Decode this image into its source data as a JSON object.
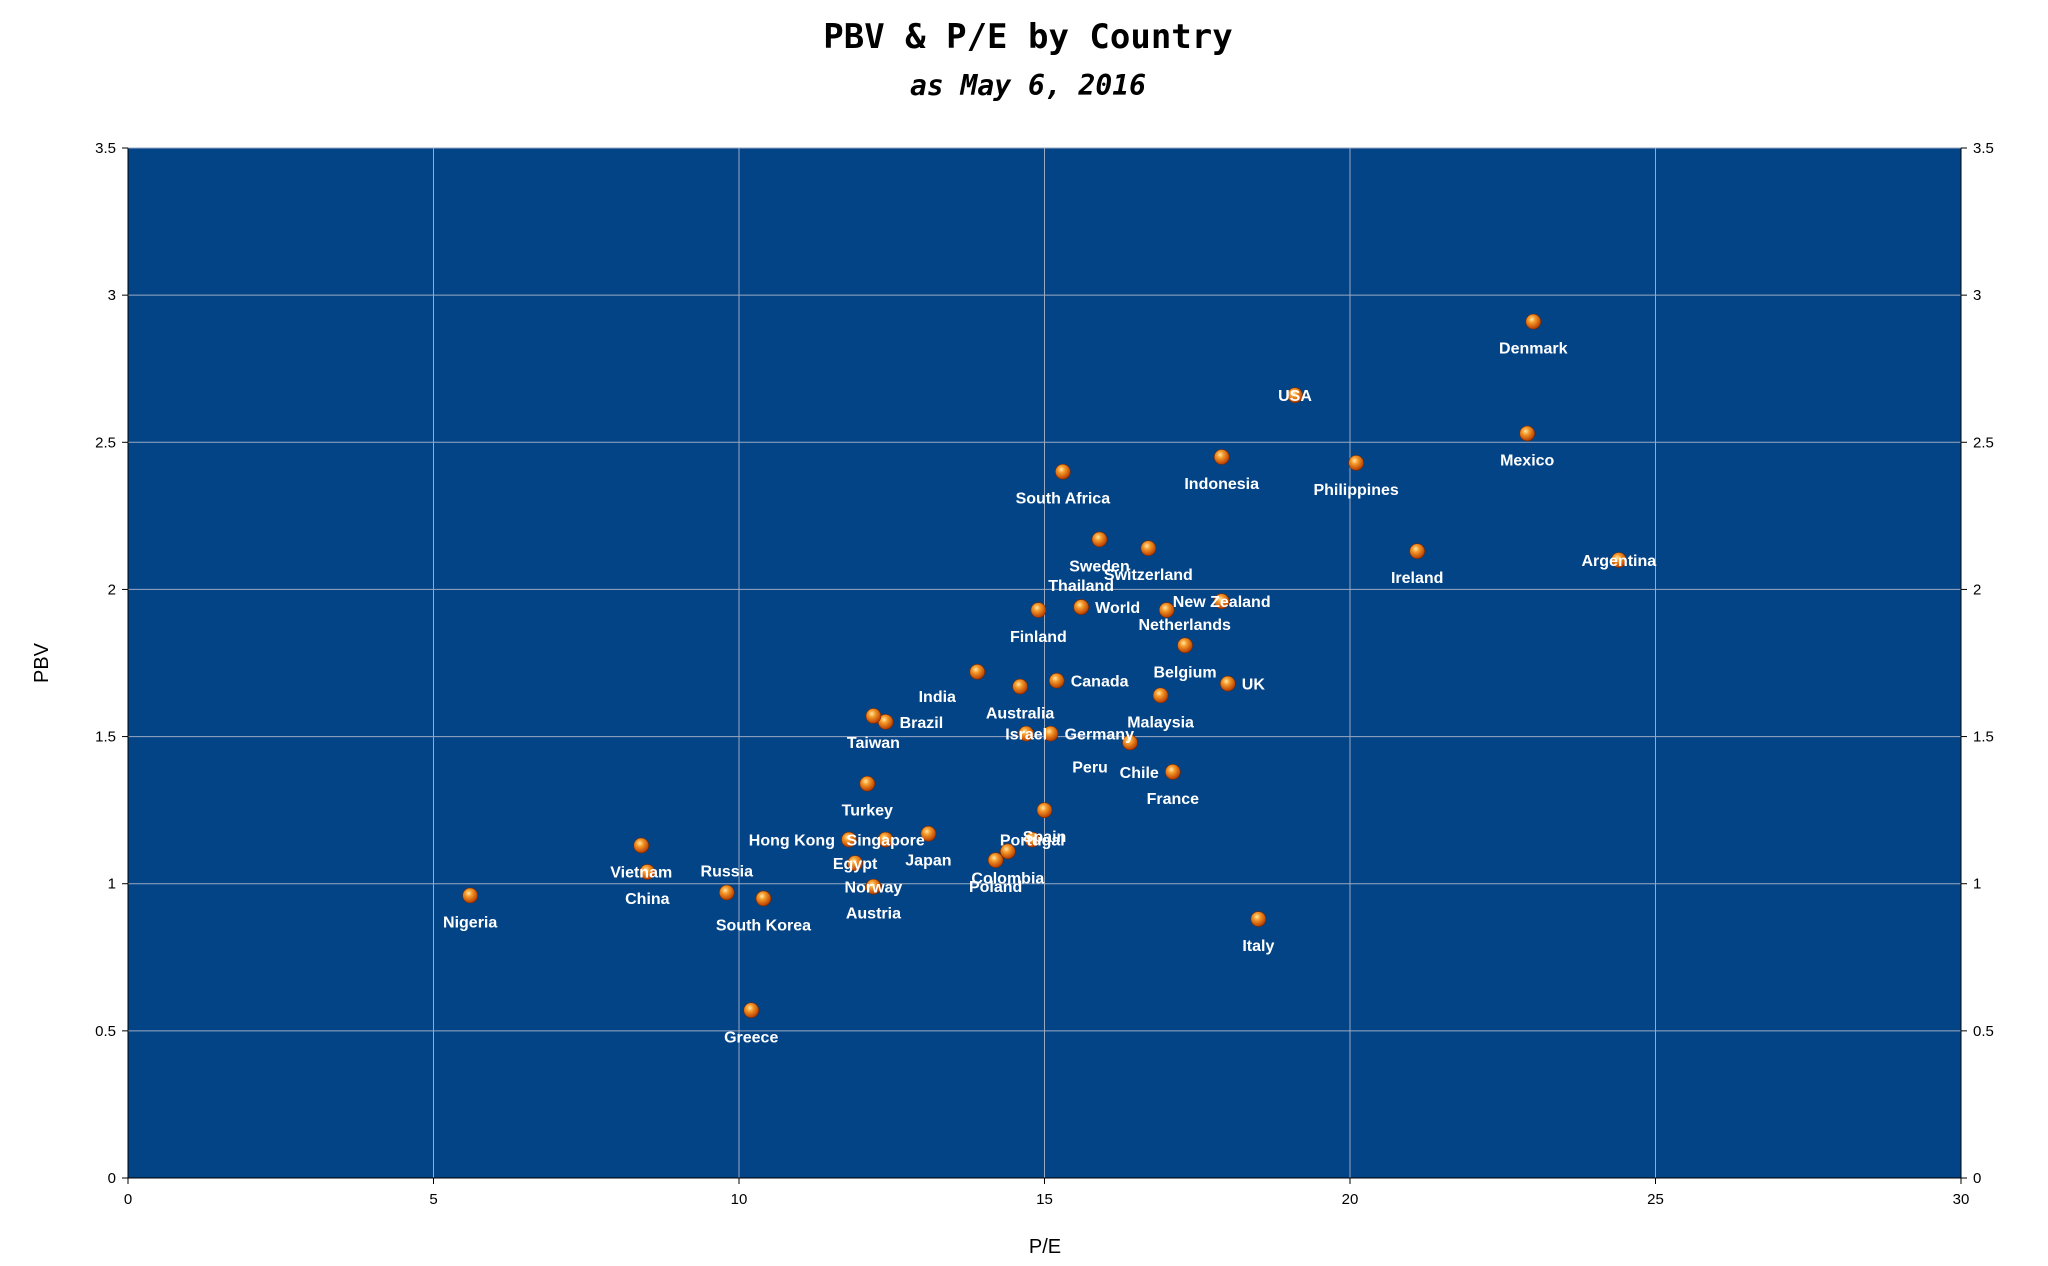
{
  "chart_data": {
    "type": "scatter",
    "title": "PBV & P/E by Country",
    "subtitle": "as May 6, 2016",
    "xlabel": "P/E",
    "ylabel": "PBV",
    "xlim": [
      0,
      30
    ],
    "ylim": [
      0,
      3.5
    ],
    "x_ticks": [
      0,
      5,
      10,
      15,
      20,
      25,
      30
    ],
    "y_ticks": [
      0,
      0.5,
      1,
      1.5,
      2,
      2.5,
      3,
      3.5
    ],
    "grid": true,
    "secondary_y_axis": true,
    "colors": {
      "plot_background": "#034487",
      "marker": "#e8720f",
      "label": "#ffffff"
    },
    "points": [
      {
        "label": "Denmark",
        "x": 23.0,
        "y": 2.91,
        "pos": "below"
      },
      {
        "label": "USA",
        "x": 19.1,
        "y": 2.66,
        "pos": "on"
      },
      {
        "label": "Mexico",
        "x": 22.9,
        "y": 2.53,
        "pos": "below"
      },
      {
        "label": "South Africa",
        "x": 15.3,
        "y": 2.4,
        "pos": "below"
      },
      {
        "label": "Indonesia",
        "x": 17.9,
        "y": 2.45,
        "pos": "below"
      },
      {
        "label": "Philippines",
        "x": 20.1,
        "y": 2.43,
        "pos": "below"
      },
      {
        "label": "Sweden",
        "x": 15.9,
        "y": 2.17,
        "pos": "below"
      },
      {
        "label": "Switzerland",
        "x": 16.7,
        "y": 2.14,
        "pos": "below"
      },
      {
        "label": "Ireland",
        "x": 21.1,
        "y": 2.13,
        "pos": "below"
      },
      {
        "label": "Argentina",
        "x": 24.4,
        "y": 2.1,
        "pos": "on"
      },
      {
        "label": "Thailand",
        "x": 15.6,
        "y": 1.94,
        "pos": "above"
      },
      {
        "label": "World",
        "x": 15.6,
        "y": 1.94,
        "pos": "right"
      },
      {
        "label": "New Zealand",
        "x": 17.9,
        "y": 1.96,
        "pos": "on"
      },
      {
        "label": "Finland",
        "x": 14.9,
        "y": 1.93,
        "pos": "below"
      },
      {
        "label": "Netherlands",
        "x": 17.0,
        "y": 1.93,
        "pos": "below-right"
      },
      {
        "label": "Belgium",
        "x": 17.3,
        "y": 1.81,
        "pos": "below"
      },
      {
        "label": "India",
        "x": 13.9,
        "y": 1.72,
        "pos": "below-left"
      },
      {
        "label": "Canada",
        "x": 15.2,
        "y": 1.69,
        "pos": "right"
      },
      {
        "label": "UK",
        "x": 18.0,
        "y": 1.68,
        "pos": "right"
      },
      {
        "label": "Australia",
        "x": 14.6,
        "y": 1.67,
        "pos": "below"
      },
      {
        "label": "Malaysia",
        "x": 16.9,
        "y": 1.64,
        "pos": "below"
      },
      {
        "label": "Brazil",
        "x": 12.4,
        "y": 1.55,
        "pos": "right"
      },
      {
        "label": "Taiwan",
        "x": 12.2,
        "y": 1.57,
        "pos": "below"
      },
      {
        "label": "Israel",
        "x": 14.7,
        "y": 1.51,
        "pos": "on"
      },
      {
        "label": "Germany",
        "x": 15.1,
        "y": 1.51,
        "pos": "right"
      },
      {
        "label": "Peru",
        "x": 16.4,
        "y": 1.48,
        "pos": "below-left"
      },
      {
        "label": "Chile",
        "x": 17.1,
        "y": 1.38,
        "pos": "left"
      },
      {
        "label": "France",
        "x": 17.1,
        "y": 1.38,
        "pos": "below"
      },
      {
        "label": "Turkey",
        "x": 12.1,
        "y": 1.34,
        "pos": "below"
      },
      {
        "label": "Spain",
        "x": 15.0,
        "y": 1.25,
        "pos": "below"
      },
      {
        "label": "Portugal",
        "x": 14.8,
        "y": 1.15,
        "pos": "on"
      },
      {
        "label": "Hong Kong",
        "x": 11.8,
        "y": 1.15,
        "pos": "left"
      },
      {
        "label": "Singapore",
        "x": 12.4,
        "y": 1.15,
        "pos": "on"
      },
      {
        "label": "Vietnam",
        "x": 8.4,
        "y": 1.13,
        "pos": "below"
      },
      {
        "label": "Japan",
        "x": 13.1,
        "y": 1.17,
        "pos": "below"
      },
      {
        "label": "Colombia",
        "x": 14.4,
        "y": 1.11,
        "pos": "below"
      },
      {
        "label": "Egypt",
        "x": 11.9,
        "y": 1.07,
        "pos": "on"
      },
      {
        "label": "Russia",
        "x": 9.8,
        "y": 0.97,
        "pos": "above"
      },
      {
        "label": "Poland",
        "x": 14.2,
        "y": 1.08,
        "pos": "below"
      },
      {
        "label": "China",
        "x": 8.5,
        "y": 1.04,
        "pos": "below"
      },
      {
        "label": "Norway",
        "x": 12.2,
        "y": 0.99,
        "pos": "on"
      },
      {
        "label": "Nigeria",
        "x": 5.6,
        "y": 0.96,
        "pos": "below"
      },
      {
        "label": "South Korea",
        "x": 10.4,
        "y": 0.95,
        "pos": "below"
      },
      {
        "label": "Austria",
        "x": 12.2,
        "y": 0.99,
        "pos": "below"
      },
      {
        "label": "Italy",
        "x": 18.5,
        "y": 0.88,
        "pos": "below"
      },
      {
        "label": "Greece",
        "x": 10.2,
        "y": 0.57,
        "pos": "below"
      }
    ]
  }
}
